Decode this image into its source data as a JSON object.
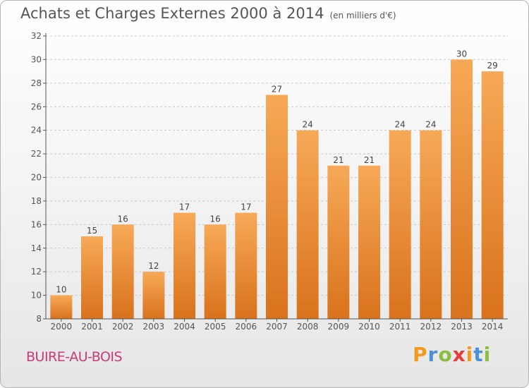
{
  "header": {
    "title": "Achats et Charges Externes 2000 à 2014",
    "unit": "(en milliers d'€)"
  },
  "footer": {
    "town": "BUIRE-AU-BOIS",
    "logo_letters": [
      "P",
      "r",
      "o",
      "x",
      "i",
      "t",
      "i"
    ],
    "logo_colors": [
      "#f39a1e",
      "#4a90d9",
      "#8cbe3f",
      "#e63c3c",
      "#f39a1e",
      "#4a90d9",
      "#8cbe3f"
    ]
  },
  "colors": {
    "bar_light": "#f7a957",
    "bar_dark": "#d9721c",
    "axis": "#555555",
    "grid": "#c8c8c8",
    "town": "#c83a7a"
  },
  "chart_data": {
    "type": "bar",
    "categories": [
      "2000",
      "2001",
      "2002",
      "2003",
      "2004",
      "2005",
      "2006",
      "2007",
      "2008",
      "2009",
      "2010",
      "2011",
      "2012",
      "2013",
      "2014"
    ],
    "values": [
      10,
      15,
      16,
      12,
      17,
      16,
      17,
      27,
      24,
      21,
      21,
      24,
      24,
      30,
      29
    ],
    "title": "Achats et Charges Externes 2000 à 2014",
    "xlabel": "",
    "ylabel": "",
    "ylim": [
      8,
      32
    ],
    "yticks": [
      8,
      10,
      12,
      14,
      16,
      18,
      20,
      22,
      24,
      26,
      28,
      30,
      32
    ],
    "grid": true,
    "data_labels": true
  }
}
